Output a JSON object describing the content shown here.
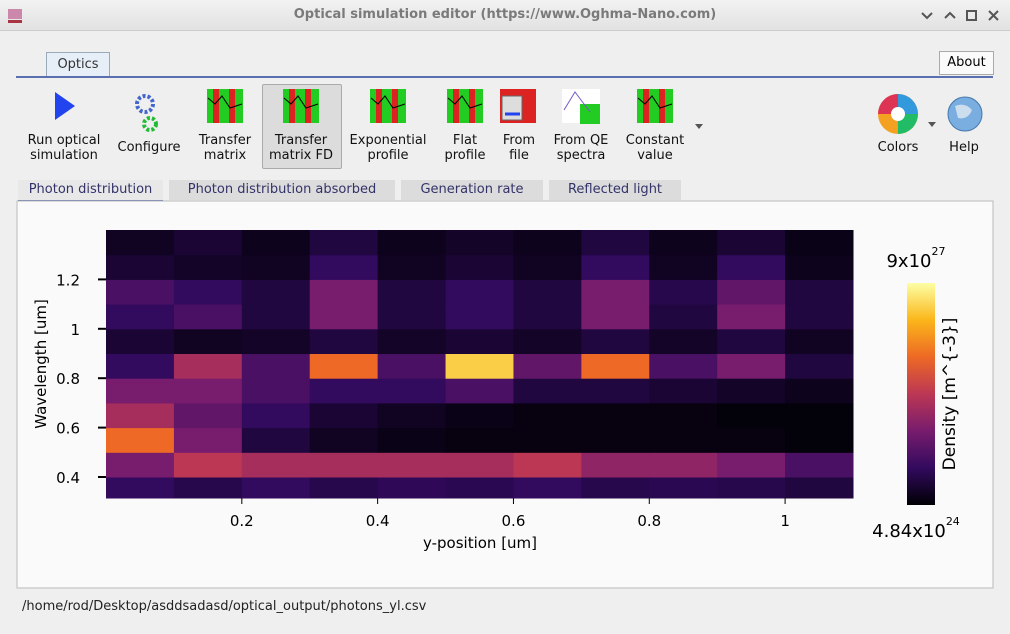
{
  "window": {
    "title": "Optical simulation editor (https://www.Oghma-Nano.com)"
  },
  "ribbon": {
    "tabs": [
      "Optics"
    ],
    "about": "About"
  },
  "toolbar": {
    "buttons": [
      {
        "lines": [
          "Run optical",
          "simulation"
        ]
      },
      {
        "lines": [
          "Configure"
        ]
      },
      {
        "lines": [
          "Transfer",
          "matrix"
        ]
      },
      {
        "lines": [
          "Transfer",
          "matrix FD"
        ]
      },
      {
        "lines": [
          "Exponential",
          "profile"
        ]
      },
      {
        "lines": [
          "Flat",
          "profile"
        ]
      },
      {
        "lines": [
          "From",
          "file"
        ]
      },
      {
        "lines": [
          "From QE",
          "spectra"
        ]
      },
      {
        "lines": [
          "Constant",
          "value"
        ]
      }
    ],
    "right_buttons": [
      {
        "lines": [
          "Colors"
        ]
      },
      {
        "lines": [
          "Help"
        ]
      }
    ]
  },
  "subtabs": [
    "Photon distribution",
    "Photon distribution absorbed",
    "Generation rate",
    "Reflected light"
  ],
  "chart_data": {
    "type": "heatmap",
    "xlabel": "y-position [um]",
    "ylabel": "Wavelength [um]",
    "xlim": [
      0,
      1.1
    ],
    "ylim": [
      0.315,
      1.4
    ],
    "xticks": [
      0.2,
      0.4,
      0.6,
      0.8,
      1
    ],
    "yticks": [
      0.4,
      0.6,
      0.8,
      1,
      1.2
    ],
    "x_bins": [
      0,
      0.1,
      0.2,
      0.3,
      0.4,
      0.5,
      0.6,
      0.7,
      0.8,
      0.9,
      1.0,
      1.1
    ],
    "y_bins": [
      0.315,
      0.4,
      0.5,
      0.6,
      0.7,
      0.8,
      0.9,
      1.0,
      1.1,
      1.2,
      1.3,
      1.4
    ],
    "values": [
      [
        1.5e+27,
        1.2e+27,
        1.5e+27,
        1.2e+27,
        1.4e+27,
        1.3e+27,
        1.5e+27,
        1.2e+27,
        1.3e+27,
        1.2e+27,
        1e+27
      ],
      [
        3e+27,
        4.5e+27,
        4e+27,
        4e+27,
        4e+27,
        4e+27,
        4.5e+27,
        3.5e+27,
        3.5e+27,
        3e+27,
        2e+27
      ],
      [
        6e+27,
        3e+27,
        1e+27,
        5e+26,
        3e+26,
        2e+26,
        2e+26,
        2e+26,
        2e+26,
        2e+26,
        1e+26
      ],
      [
        4e+27,
        2.5e+27,
        1.5e+27,
        8e+26,
        5e+26,
        3e+26,
        2e+26,
        2e+26,
        2e+26,
        1e+26,
        1e+26
      ],
      [
        3e+27,
        3e+27,
        2e+27,
        1.5e+27,
        1.5e+27,
        2e+27,
        1e+27,
        1e+27,
        8e+26,
        6e+26,
        4e+26
      ],
      [
        1.5e+27,
        4e+27,
        2e+27,
        6e+27,
        2e+27,
        8e+27,
        2.5e+27,
        6e+27,
        2e+27,
        3e+27,
        1e+27
      ],
      [
        8e+26,
        5e+26,
        6e+26,
        1e+27,
        6e+26,
        8e+26,
        6e+26,
        1e+27,
        6e+26,
        1e+27,
        5e+26
      ],
      [
        1.5e+27,
        2e+27,
        1e+27,
        3e+27,
        1e+27,
        1.5e+27,
        1e+27,
        3e+27,
        1e+27,
        3e+27,
        1e+27
      ],
      [
        2e+27,
        1.5e+27,
        1e+27,
        3e+27,
        1e+27,
        1.5e+27,
        1e+27,
        3e+27,
        1.2e+27,
        2.5e+27,
        1e+27
      ],
      [
        8e+26,
        6e+26,
        5e+26,
        1.5e+27,
        5e+26,
        8e+26,
        5e+26,
        1.5e+27,
        5e+26,
        1.5e+27,
        4e+26
      ],
      [
        5e+26,
        8e+26,
        4e+26,
        1e+27,
        4e+26,
        6e+26,
        4e+26,
        1e+27,
        4e+26,
        8e+26,
        3e+26
      ]
    ],
    "colormap": [
      "#000004",
      "#320a5e",
      "#781c6d",
      "#bc3754",
      "#ed6925",
      "#fbb61a",
      "#fcffa4"
    ],
    "colorbar": {
      "label": "Density [m^{-3}]",
      "lim": [
        4.84e+24,
        9e+27
      ],
      "ticks": [
        {
          "value": 9e+27,
          "label": "9x10",
          "sup": "27"
        },
        {
          "value": 4.84e+24,
          "label": "4.84x10",
          "sup": "24"
        }
      ]
    }
  },
  "status": "/home/rod/Desktop/asddsadasd/optical_output/photons_yl.csv"
}
